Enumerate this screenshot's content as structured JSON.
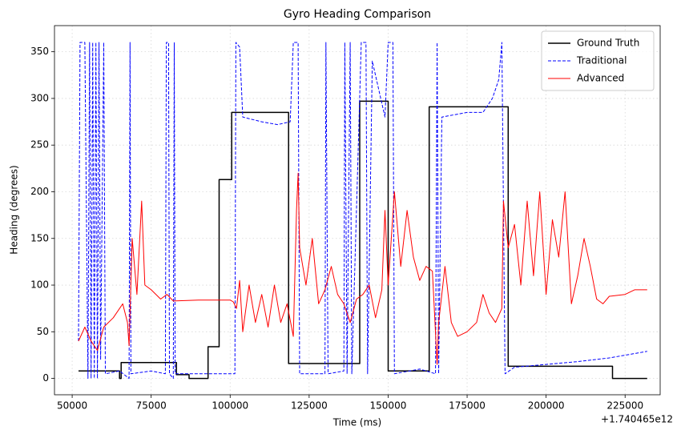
{
  "chart_data": {
    "type": "line",
    "title": "Gyro Heading Comparison",
    "x_label": "Time (ms)",
    "y_label": "Heading (degrees)",
    "x_offset_label": "+1.740465e12",
    "xlim": [
      44400,
      236100
    ],
    "ylim": [
      -17.5,
      378
    ],
    "xticks": [
      50000,
      75000,
      100000,
      125000,
      150000,
      175000,
      200000,
      225000
    ],
    "yticks": [
      0,
      50,
      100,
      150,
      200,
      250,
      300,
      350
    ],
    "grid": true,
    "legend": "upper right",
    "series": [
      {
        "name": "Ground Truth",
        "color": "#000000",
        "style": "solid",
        "width": 1.5,
        "x": [
          52000,
          65000,
          65000,
          65500,
          65500,
          83000,
          83000,
          87000,
          87000,
          93000,
          93000,
          96500,
          96500,
          100500,
          100500,
          118500,
          118500,
          141000,
          141000,
          150000,
          150000,
          163000,
          163000,
          188000,
          188000,
          221000,
          221000,
          232000
        ],
        "values": [
          8,
          8,
          0,
          0,
          17,
          17,
          4,
          4,
          0,
          0,
          34,
          34,
          213,
          213,
          285,
          285,
          16,
          16,
          297,
          297,
          8,
          8,
          291,
          291,
          13,
          13,
          0,
          0
        ]
      },
      {
        "name": "Traditional",
        "color": "#0000ff",
        "style": "dashed",
        "width": 1,
        "x": [
          52000,
          52500,
          54000,
          55000,
          55500,
          56000,
          56500,
          57000,
          57500,
          58000,
          58500,
          59000,
          60000,
          60500,
          65000,
          68000,
          68300,
          68600,
          75000,
          79500,
          79800,
          80500,
          80800,
          82000,
          82300,
          82600,
          90000,
          101500,
          101800,
          103000,
          104000,
          110000,
          115000,
          119000,
          120000,
          121500,
          122000,
          130000,
          130300,
          131000,
          136000,
          136300,
          137000,
          138000,
          138500,
          141500,
          143000,
          143500,
          145000,
          147000,
          149000,
          150000,
          151500,
          152000,
          160000,
          165000,
          165500,
          166000,
          167000,
          175000,
          180000,
          183000,
          185000,
          186000,
          187000,
          190000,
          200000,
          210000,
          220000,
          232000
        ],
        "values": [
          40,
          360,
          360,
          0,
          360,
          0,
          360,
          0,
          360,
          0,
          360,
          20,
          360,
          5,
          8,
          0,
          360,
          5,
          8,
          5,
          360,
          360,
          5,
          0,
          360,
          5,
          5,
          5,
          360,
          355,
          280,
          275,
          272,
          275,
          360,
          360,
          5,
          5,
          360,
          5,
          8,
          360,
          5,
          360,
          5,
          360,
          360,
          5,
          340,
          310,
          280,
          360,
          360,
          5,
          10,
          5,
          360,
          5,
          280,
          285,
          285,
          300,
          320,
          360,
          5,
          12,
          15,
          18,
          22,
          29
        ]
      },
      {
        "name": "Advanced",
        "color": "#ff0000",
        "style": "solid",
        "width": 1,
        "x": [
          52000,
          54000,
          56000,
          58000,
          60000,
          63000,
          66000,
          67500,
          68000,
          69000,
          70500,
          72000,
          73000,
          75000,
          78000,
          80000,
          82000,
          90000,
          100000,
          101000,
          102000,
          103000,
          104000,
          106000,
          108000,
          110000,
          112000,
          114000,
          116000,
          118000,
          120000,
          121000,
          121500,
          122000,
          124000,
          126000,
          128000,
          130000,
          132000,
          134000,
          136000,
          138000,
          140000,
          142000,
          144000,
          146000,
          148000,
          149000,
          150000,
          152000,
          154000,
          156000,
          158000,
          160000,
          162000,
          164000,
          165500,
          166000,
          168000,
          170000,
          172000,
          175000,
          178000,
          180000,
          182000,
          184000,
          186000,
          186500,
          188000,
          190000,
          192000,
          194000,
          196000,
          198000,
          200000,
          202000,
          204000,
          206000,
          208000,
          210000,
          212000,
          214000,
          216000,
          218000,
          220000,
          225000,
          228000,
          232000
        ],
        "values": [
          40,
          55,
          40,
          30,
          55,
          65,
          80,
          60,
          35,
          150,
          90,
          190,
          100,
          95,
          85,
          90,
          83,
          84,
          84,
          82,
          75,
          105,
          50,
          100,
          60,
          90,
          55,
          100,
          60,
          80,
          45,
          180,
          220,
          140,
          100,
          150,
          80,
          95,
          120,
          90,
          80,
          60,
          85,
          90,
          100,
          65,
          95,
          180,
          100,
          200,
          120,
          180,
          130,
          105,
          120,
          115,
          15,
          60,
          120,
          60,
          45,
          50,
          60,
          90,
          70,
          60,
          75,
          190,
          140,
          165,
          100,
          190,
          110,
          200,
          90,
          170,
          130,
          200,
          80,
          110,
          150,
          120,
          85,
          80,
          88,
          90,
          95,
          95
        ]
      }
    ]
  }
}
